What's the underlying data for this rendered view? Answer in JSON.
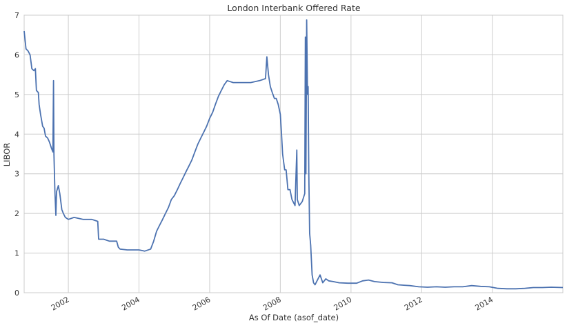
{
  "chart_data": {
    "type": "line",
    "title": "London Interbank Offered Rate",
    "xlabel": "As Of Date (asof_date)",
    "ylabel": "LIBOR",
    "xlim": [
      "2000-10-01",
      "2015-12-31"
    ],
    "ylim": [
      0,
      7
    ],
    "yticks": [
      0,
      1,
      2,
      3,
      4,
      5,
      6,
      7
    ],
    "xticks": [
      "2002",
      "2004",
      "2006",
      "2008",
      "2010",
      "2012",
      "2014"
    ],
    "grid": true,
    "legend": "none",
    "series": [
      {
        "color": "#4C72B0",
        "points": [
          [
            "2000-10-01",
            6.6
          ],
          [
            "2000-10-20",
            6.15
          ],
          [
            "2000-11-10",
            6.1
          ],
          [
            "2000-12-01",
            6.0
          ],
          [
            "2000-12-20",
            5.65
          ],
          [
            "2001-01-10",
            5.6
          ],
          [
            "2001-01-25",
            5.65
          ],
          [
            "2001-02-05",
            5.1
          ],
          [
            "2001-02-25",
            5.05
          ],
          [
            "2001-03-05",
            4.75
          ],
          [
            "2001-03-20",
            4.5
          ],
          [
            "2001-04-10",
            4.2
          ],
          [
            "2001-04-25",
            4.15
          ],
          [
            "2001-05-10",
            3.95
          ],
          [
            "2001-06-01",
            3.9
          ],
          [
            "2001-06-20",
            3.8
          ],
          [
            "2001-07-10",
            3.65
          ],
          [
            "2001-07-25",
            3.55
          ],
          [
            "2001-08-01",
            5.35
          ],
          [
            "2001-08-05",
            3.5
          ],
          [
            "2001-08-15",
            2.55
          ],
          [
            "2001-08-25",
            1.95
          ],
          [
            "2001-09-01",
            2.55
          ],
          [
            "2001-09-20",
            2.7
          ],
          [
            "2001-10-05",
            2.5
          ],
          [
            "2001-10-25",
            2.1
          ],
          [
            "2001-11-10",
            2.0
          ],
          [
            "2001-12-01",
            1.9
          ],
          [
            "2002-01-01",
            1.85
          ],
          [
            "2002-03-01",
            1.9
          ],
          [
            "2002-06-01",
            1.85
          ],
          [
            "2002-09-01",
            1.85
          ],
          [
            "2002-11-01",
            1.8
          ],
          [
            "2002-11-10",
            1.35
          ],
          [
            "2003-01-01",
            1.35
          ],
          [
            "2003-03-01",
            1.3
          ],
          [
            "2003-05-15",
            1.3
          ],
          [
            "2003-06-01",
            1.15
          ],
          [
            "2003-06-20",
            1.1
          ],
          [
            "2003-09-01",
            1.08
          ],
          [
            "2004-01-01",
            1.08
          ],
          [
            "2004-03-01",
            1.05
          ],
          [
            "2004-05-01",
            1.1
          ],
          [
            "2004-06-01",
            1.3
          ],
          [
            "2004-07-01",
            1.55
          ],
          [
            "2004-08-01",
            1.7
          ],
          [
            "2004-09-01",
            1.85
          ],
          [
            "2004-10-01",
            2.0
          ],
          [
            "2004-11-01",
            2.15
          ],
          [
            "2004-12-01",
            2.35
          ],
          [
            "2005-01-01",
            2.45
          ],
          [
            "2005-02-01",
            2.6
          ],
          [
            "2005-03-01",
            2.75
          ],
          [
            "2005-04-01",
            2.9
          ],
          [
            "2005-05-01",
            3.05
          ],
          [
            "2005-06-01",
            3.2
          ],
          [
            "2005-07-01",
            3.35
          ],
          [
            "2005-08-01",
            3.55
          ],
          [
            "2005-09-01",
            3.75
          ],
          [
            "2005-10-01",
            3.9
          ],
          [
            "2005-11-01",
            4.05
          ],
          [
            "2005-12-01",
            4.2
          ],
          [
            "2006-01-01",
            4.4
          ],
          [
            "2006-02-01",
            4.55
          ],
          [
            "2006-03-01",
            4.75
          ],
          [
            "2006-04-01",
            4.95
          ],
          [
            "2006-05-01",
            5.1
          ],
          [
            "2006-06-01",
            5.25
          ],
          [
            "2006-07-01",
            5.35
          ],
          [
            "2006-09-01",
            5.3
          ],
          [
            "2006-12-01",
            5.3
          ],
          [
            "2007-03-01",
            5.3
          ],
          [
            "2007-06-01",
            5.35
          ],
          [
            "2007-08-01",
            5.4
          ],
          [
            "2007-08-15",
            5.95
          ],
          [
            "2007-09-01",
            5.5
          ],
          [
            "2007-09-20",
            5.2
          ],
          [
            "2007-10-10",
            5.05
          ],
          [
            "2007-11-01",
            4.9
          ],
          [
            "2007-11-20",
            4.9
          ],
          [
            "2007-12-10",
            4.75
          ],
          [
            "2008-01-01",
            4.5
          ],
          [
            "2008-01-15",
            3.95
          ],
          [
            "2008-01-25",
            3.5
          ],
          [
            "2008-02-15",
            3.1
          ],
          [
            "2008-03-01",
            3.1
          ],
          [
            "2008-03-20",
            2.6
          ],
          [
            "2008-04-10",
            2.6
          ],
          [
            "2008-05-01",
            2.35
          ],
          [
            "2008-06-01",
            2.2
          ],
          [
            "2008-06-20",
            3.6
          ],
          [
            "2008-06-25",
            2.35
          ],
          [
            "2008-07-15",
            2.2
          ],
          [
            "2008-08-15",
            2.3
          ],
          [
            "2008-09-10",
            2.5
          ],
          [
            "2008-09-16",
            6.45
          ],
          [
            "2008-09-22",
            3.0
          ],
          [
            "2008-09-30",
            6.88
          ],
          [
            "2008-10-08",
            5.0
          ],
          [
            "2008-10-15",
            5.2
          ],
          [
            "2008-10-22",
            3.0
          ],
          [
            "2008-10-30",
            1.5
          ],
          [
            "2008-11-10",
            1.2
          ],
          [
            "2008-11-25",
            0.45
          ],
          [
            "2008-12-10",
            0.25
          ],
          [
            "2008-12-25",
            0.2
          ],
          [
            "2009-01-15",
            0.3
          ],
          [
            "2009-02-15",
            0.45
          ],
          [
            "2009-03-15",
            0.25
          ],
          [
            "2009-04-15",
            0.35
          ],
          [
            "2009-05-15",
            0.3
          ],
          [
            "2009-07-01",
            0.28
          ],
          [
            "2009-09-01",
            0.25
          ],
          [
            "2009-12-01",
            0.24
          ],
          [
            "2010-03-01",
            0.24
          ],
          [
            "2010-05-01",
            0.3
          ],
          [
            "2010-07-01",
            0.32
          ],
          [
            "2010-09-01",
            0.28
          ],
          [
            "2010-12-01",
            0.26
          ],
          [
            "2011-03-01",
            0.25
          ],
          [
            "2011-05-01",
            0.2
          ],
          [
            "2011-07-01",
            0.19
          ],
          [
            "2011-09-01",
            0.18
          ],
          [
            "2011-12-01",
            0.15
          ],
          [
            "2012-03-01",
            0.14
          ],
          [
            "2012-06-01",
            0.15
          ],
          [
            "2012-09-01",
            0.14
          ],
          [
            "2012-12-01",
            0.15
          ],
          [
            "2013-03-01",
            0.15
          ],
          [
            "2013-06-01",
            0.18
          ],
          [
            "2013-09-01",
            0.16
          ],
          [
            "2013-12-01",
            0.15
          ],
          [
            "2014-03-01",
            0.11
          ],
          [
            "2014-06-01",
            0.1
          ],
          [
            "2014-09-01",
            0.1
          ],
          [
            "2014-12-01",
            0.11
          ],
          [
            "2015-03-01",
            0.13
          ],
          [
            "2015-06-01",
            0.13
          ],
          [
            "2015-09-01",
            0.14
          ],
          [
            "2015-12-31",
            0.13
          ]
        ]
      }
    ]
  }
}
